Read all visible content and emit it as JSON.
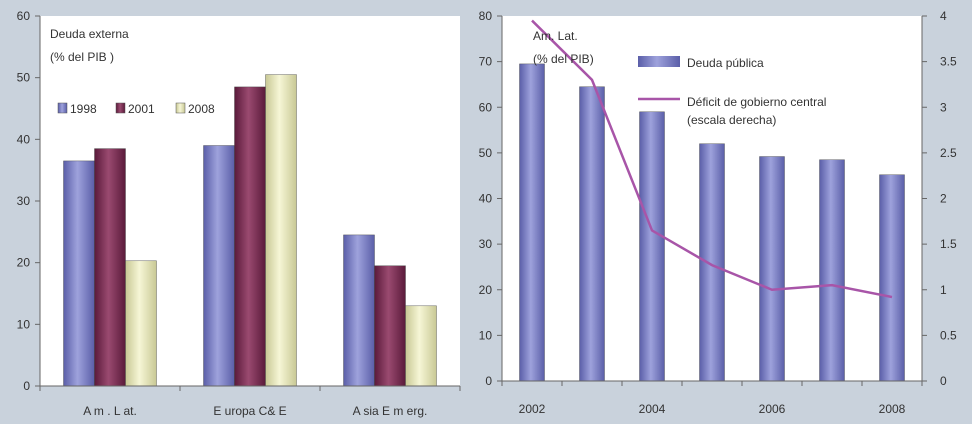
{
  "colors": {
    "background": "#c9d2dc",
    "plot_bg": "#ffffff",
    "axis": "#666666",
    "text": "#333333",
    "s1998": "#7a7ec4",
    "s2001": "#7b2d52",
    "s2008": "#e8e8b4",
    "debt": "#7a7ec4",
    "deficit": "#a855a8"
  },
  "chart_data": [
    {
      "type": "bar",
      "title": "Deuda externa",
      "subtitle": "(% del PIB )",
      "categories": [
        "A m . L at.",
        "E uropa C& E",
        "A sia E m erg."
      ],
      "series": [
        {
          "name": "1998",
          "values": [
            36.5,
            39,
            24.5
          ]
        },
        {
          "name": "2001",
          "values": [
            38.5,
            48.5,
            19.5
          ]
        },
        {
          "name": "2008",
          "values": [
            20.3,
            50.5,
            13
          ]
        }
      ],
      "ylim": [
        0,
        60
      ],
      "yticks": [
        "0",
        "10",
        "20",
        "30",
        "40",
        "50",
        "60"
      ],
      "grid": false,
      "legend": "upper-left"
    },
    {
      "type": "bar",
      "title": "Am. Lat.",
      "subtitle": "(% del PIB)",
      "x": [
        2002,
        2003,
        2004,
        2005,
        2006,
        2007,
        2008
      ],
      "xticks": [
        "2002",
        "2004",
        "2006",
        "2008"
      ],
      "series": [
        {
          "name": "Deuda pública",
          "type": "bar",
          "axis": "left",
          "values": [
            69.5,
            64.5,
            59,
            52,
            49.2,
            48.5,
            45.2
          ]
        },
        {
          "name": "Déficit de gobierno central",
          "name_note": "(escala derecha)",
          "type": "line",
          "axis": "right",
          "values": [
            3.95,
            3.3,
            1.65,
            1.27,
            1.0,
            1.05,
            0.92
          ]
        }
      ],
      "ylim": [
        0,
        80
      ],
      "yticks": [
        "0",
        "10",
        "20",
        "30",
        "40",
        "50",
        "60",
        "70",
        "80"
      ],
      "y2lim": [
        0,
        4
      ],
      "y2ticks": [
        "0",
        "0.5",
        "1",
        "1.5",
        "2",
        "2.5",
        "3",
        "3.5",
        "4"
      ],
      "grid": false,
      "legend": "top-center"
    }
  ]
}
